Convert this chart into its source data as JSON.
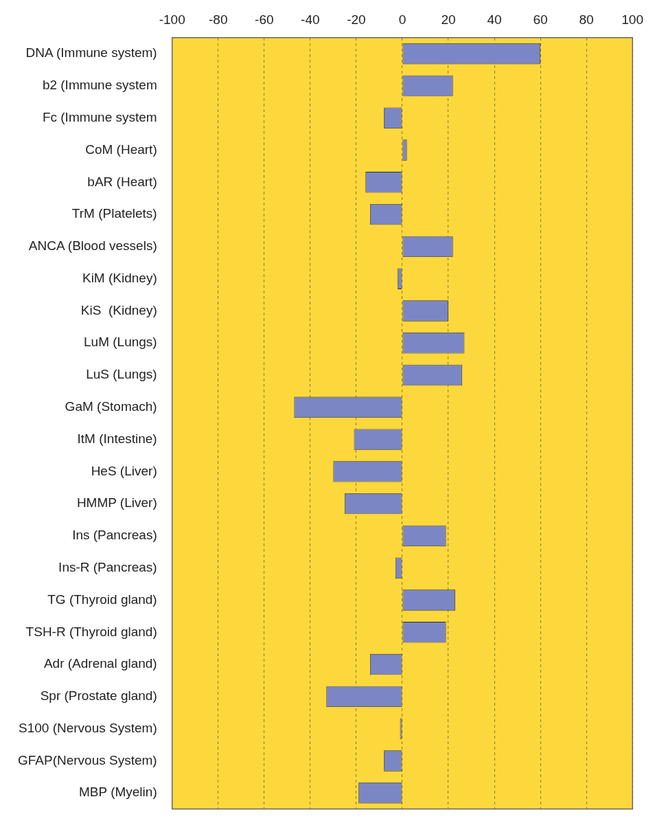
{
  "chart_data": {
    "type": "bar",
    "orientation": "horizontal",
    "categories": [
      "DNA (Immune system)",
      "b2 (Immune system",
      "Fc (Immune system",
      "CoM (Heart)",
      "bAR (Heart)",
      "TrM (Platelets)",
      "ANCA (Blood vessels)",
      "KiM (Kidney)",
      "KiS  (Kidney)",
      "LuM (Lungs)",
      "LuS (Lungs)",
      "GaM (Stomach)",
      "ItM (Intestine)",
      "HeS (Liver)",
      "HMMP (Liver)",
      "Ins (Pancreas)",
      "Ins-R (Pancreas)",
      "TG (Thyroid gland)",
      "TSH-R (Thyroid gland)",
      "Adr (Adrenal gland)",
      "Spr (Prostate gland)",
      "S100 (Nervous System)",
      "GFAP(Nervous System)",
      "MBP (Myelin)"
    ],
    "values": [
      60,
      22,
      -8,
      2,
      -16,
      -14,
      22,
      -2,
      20,
      27,
      26,
      -47,
      -21,
      -30,
      -25,
      19,
      -3,
      23,
      19,
      -14,
      -33,
      -1,
      -8,
      -19
    ],
    "color": "#7b86c4",
    "xlim": [
      -100,
      100
    ],
    "xticks": [
      -100,
      -80,
      -60,
      -40,
      -20,
      0,
      20,
      40,
      60,
      80,
      100
    ],
    "grid": "x"
  }
}
